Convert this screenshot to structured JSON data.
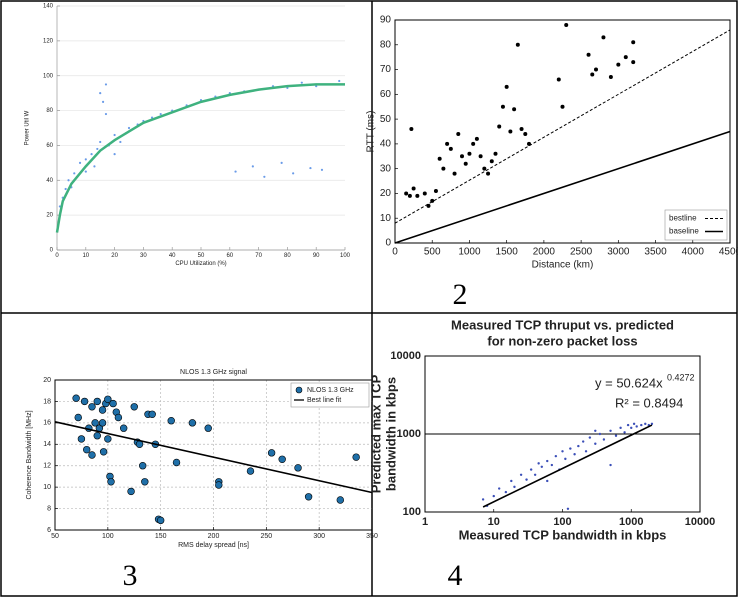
{
  "chart_data": [
    {
      "type": "scatter",
      "xlabel": "CPU Utilization (%)",
      "ylabel": "Power Util W",
      "xlim": [
        0,
        100
      ],
      "xticks": [
        0,
        10,
        20,
        30,
        40,
        50,
        60,
        70,
        80,
        90,
        100
      ],
      "ylim": [
        0,
        140
      ],
      "yticks": [
        0,
        20,
        40,
        60,
        80,
        100,
        120,
        140
      ],
      "grid": "y",
      "series": [
        {
          "mode": "markers",
          "color": "#6a9be8",
          "x": [
            1,
            2,
            3,
            4,
            5,
            6,
            7,
            8,
            9,
            10,
            12,
            14,
            15,
            16,
            17,
            18,
            20,
            22,
            25,
            28,
            30,
            33,
            36,
            40,
            45,
            50,
            55,
            60,
            65,
            70,
            75,
            80,
            85,
            90,
            95,
            98,
            62,
            68,
            72,
            78,
            82,
            88,
            92,
            15,
            17,
            13,
            20,
            24,
            10
          ],
          "values": [
            25,
            30,
            35,
            40,
            36,
            44,
            42,
            50,
            46,
            52,
            55,
            58,
            90,
            85,
            95,
            60,
            66,
            62,
            70,
            72,
            74,
            76,
            78,
            80,
            83,
            86,
            88,
            90,
            91,
            92,
            94,
            93,
            96,
            94,
            95,
            97,
            45,
            48,
            42,
            50,
            44,
            47,
            46,
            62,
            78,
            48,
            55,
            67,
            45
          ]
        },
        {
          "mode": "lines",
          "color": "#3fb27f",
          "x": [
            0,
            1,
            2,
            5,
            10,
            15,
            20,
            25,
            30,
            40,
            50,
            60,
            70,
            80,
            90,
            100
          ],
          "values": [
            10,
            20,
            28,
            38,
            48,
            57,
            63,
            68,
            73,
            79,
            85,
            89,
            92,
            94,
            95,
            95
          ]
        }
      ]
    },
    {
      "type": "scatter",
      "panel_label": "2",
      "xlabel": "Distance (km)",
      "ylabel": "RTT (ms)",
      "xlim": [
        0,
        4500
      ],
      "xticks": [
        0,
        500,
        1000,
        1500,
        2000,
        2500,
        3000,
        3500,
        4000,
        4500
      ],
      "ylim": [
        0,
        90
      ],
      "yticks": [
        0,
        10,
        20,
        30,
        40,
        50,
        60,
        70,
        80,
        90
      ],
      "legend": "lower right",
      "series": [
        {
          "mode": "markers",
          "color": "#000000",
          "x": [
            150,
            200,
            220,
            250,
            300,
            400,
            450,
            500,
            550,
            600,
            650,
            700,
            750,
            800,
            850,
            900,
            950,
            1000,
            1050,
            1100,
            1150,
            1200,
            1250,
            1300,
            1350,
            1400,
            1450,
            1500,
            1550,
            1600,
            1650,
            1700,
            1750,
            1800,
            2200,
            2250,
            2300,
            2600,
            2650,
            2700,
            2800,
            2900,
            3000,
            3100,
            3200,
            3200
          ],
          "values": [
            20,
            19,
            46,
            22,
            19,
            20,
            15,
            17,
            21,
            34,
            30,
            40,
            38,
            28,
            44,
            35,
            32,
            36,
            40,
            42,
            35,
            30,
            28,
            33,
            36,
            47,
            55,
            63,
            45,
            54,
            80,
            46,
            44,
            40,
            66,
            55,
            88,
            76,
            68,
            70,
            83,
            67,
            72,
            75,
            81,
            73
          ]
        },
        {
          "mode": "lines",
          "name": "bestline",
          "dash": true,
          "color": "#000000",
          "x": [
            0,
            4500
          ],
          "values": [
            8,
            86
          ]
        },
        {
          "mode": "lines",
          "name": "baseline",
          "color": "#000000",
          "x": [
            0,
            4500
          ],
          "values": [
            0,
            45
          ]
        }
      ]
    },
    {
      "type": "scatter",
      "panel_label": "3",
      "title": "NLOS 1.3 GHz signal",
      "xlabel": "RMS delay spread [ns]",
      "ylabel": "Coherence Bandwidth [MHz]",
      "xlim": [
        50,
        350
      ],
      "xticks": [
        50,
        100,
        150,
        200,
        250,
        300,
        350
      ],
      "ylim": [
        6,
        20
      ],
      "yticks": [
        6,
        8,
        10,
        12,
        14,
        16,
        18,
        20
      ],
      "grid": "xy",
      "legend": "upper right",
      "series": [
        {
          "mode": "markers",
          "name": "NLOS 1.3 GHz",
          "color": "#1f6fa8",
          "x": [
            70,
            72,
            75,
            78,
            80,
            82,
            85,
            85,
            88,
            90,
            90,
            92,
            95,
            95,
            96,
            98,
            100,
            100,
            102,
            103,
            105,
            108,
            110,
            115,
            122,
            125,
            128,
            130,
            133,
            135,
            138,
            142,
            145,
            148,
            150,
            160,
            165,
            180,
            195,
            205,
            205,
            235,
            255,
            265,
            280,
            290,
            320,
            335
          ],
          "values": [
            18.3,
            16.5,
            14.5,
            18,
            13.5,
            15.5,
            17.5,
            13,
            16,
            14.8,
            18,
            15.5,
            17.2,
            16,
            13.3,
            17.8,
            14.5,
            18.2,
            11,
            10.5,
            17.8,
            17,
            16.5,
            15.5,
            9.6,
            17.5,
            14.2,
            14,
            12,
            10.5,
            16.8,
            16.8,
            14,
            7,
            6.9,
            16.2,
            12.3,
            16,
            15.5,
            10.5,
            10.2,
            11.5,
            13.2,
            12.6,
            11.8,
            9.1,
            8.8,
            12.8
          ]
        },
        {
          "mode": "lines",
          "name": "Best line fit",
          "color": "#000000",
          "x": [
            50,
            350
          ],
          "values": [
            16.1,
            9.5
          ]
        }
      ]
    },
    {
      "type": "scatter",
      "panel_label": "4",
      "title": [
        "Measured TCP thruput vs. predicted",
        "for non-zero packet loss"
      ],
      "xlabel": "Measured TCP bandwidth in kbps",
      "ylabel": [
        "Predicted max TCP",
        "bandwidth in kbps"
      ],
      "xscale": "log",
      "yscale": "log",
      "xlim": [
        1,
        10000
      ],
      "xticks": [
        1,
        10,
        100,
        1000,
        10000
      ],
      "ylim": [
        100,
        10000
      ],
      "yticks": [
        100,
        1000,
        10000
      ],
      "grid": "y",
      "annotations": [
        "y = 50.624x",
        "0.4272",
        "R² = 0.8494"
      ],
      "series": [
        {
          "mode": "markers",
          "color": "#3b4fb8",
          "x": [
            7,
            8,
            10,
            12,
            15,
            18,
            20,
            25,
            30,
            35,
            40,
            45,
            50,
            60,
            70,
            80,
            90,
            100,
            110,
            130,
            150,
            170,
            200,
            220,
            250,
            300,
            350,
            400,
            500,
            600,
            700,
            800,
            900,
            1000,
            1100,
            1200,
            1400,
            1600,
            1800,
            2000,
            120,
            60,
            500,
            300
          ],
          "values": [
            145,
            120,
            160,
            200,
            180,
            250,
            210,
            300,
            260,
            350,
            300,
            420,
            380,
            450,
            400,
            520,
            350,
            600,
            480,
            650,
            550,
            700,
            800,
            600,
            900,
            750,
            1000,
            850,
            1100,
            950,
            1200,
            1050,
            1300,
            1200,
            1350,
            1250,
            1300,
            1350,
            1300,
            1350,
            110,
            250,
            400,
            1100
          ]
        },
        {
          "mode": "lines",
          "color": "#000000",
          "x": [
            7,
            2000
          ],
          "values": [
            116,
            1301
          ]
        }
      ]
    }
  ]
}
